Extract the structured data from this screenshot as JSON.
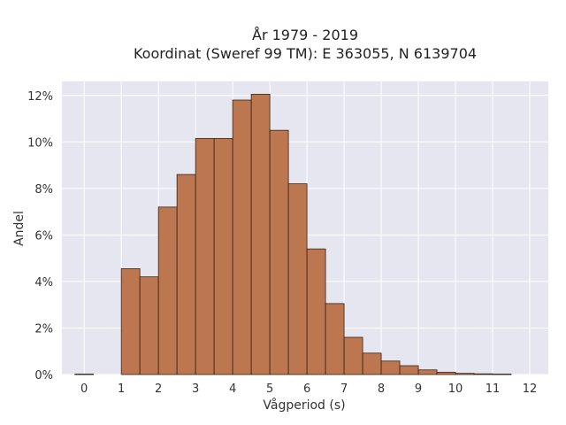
{
  "chart_data": {
    "type": "bar",
    "title": "År 1979 - 2019",
    "subtitle": "Koordinat (Sweref 99 TM): E 363055, N 6139704",
    "xlabel": "Vågperiod (s)",
    "ylabel": "Andel",
    "xlim": [
      -0.6,
      12.5
    ],
    "ylim": [
      0,
      12.6
    ],
    "grid": true,
    "x_ticks": [
      0,
      1,
      2,
      3,
      4,
      5,
      6,
      7,
      8,
      9,
      10,
      11,
      12
    ],
    "x_tick_labels": [
      "0",
      "1",
      "2",
      "3",
      "4",
      "5",
      "6",
      "7",
      "8",
      "9",
      "10",
      "11",
      "12"
    ],
    "y_ticks": [
      0,
      2,
      4,
      6,
      8,
      10,
      12
    ],
    "y_tick_labels": [
      "0%",
      "2%",
      "4%",
      "6%",
      "8%",
      "10%",
      "12%"
    ],
    "bin_width": 0.5,
    "bin_starts": [
      -0.25,
      1.0,
      1.5,
      2.0,
      2.5,
      3.0,
      3.5,
      4.0,
      4.5,
      5.0,
      5.5,
      6.0,
      6.5,
      7.0,
      7.5,
      8.0,
      8.5,
      9.0,
      9.5,
      10.0,
      10.5,
      11.0
    ],
    "values": [
      0.02,
      4.55,
      4.2,
      7.2,
      8.6,
      10.15,
      10.15,
      11.8,
      12.05,
      10.5,
      8.2,
      5.4,
      3.05,
      1.6,
      0.92,
      0.58,
      0.38,
      0.2,
      0.1,
      0.05,
      0.03,
      0.02
    ],
    "colors": {
      "bar_fill": "#bc7650",
      "bar_edge": "#3b2416",
      "plot_bg": "#e5e6ef",
      "grid": "#ffffff"
    }
  }
}
